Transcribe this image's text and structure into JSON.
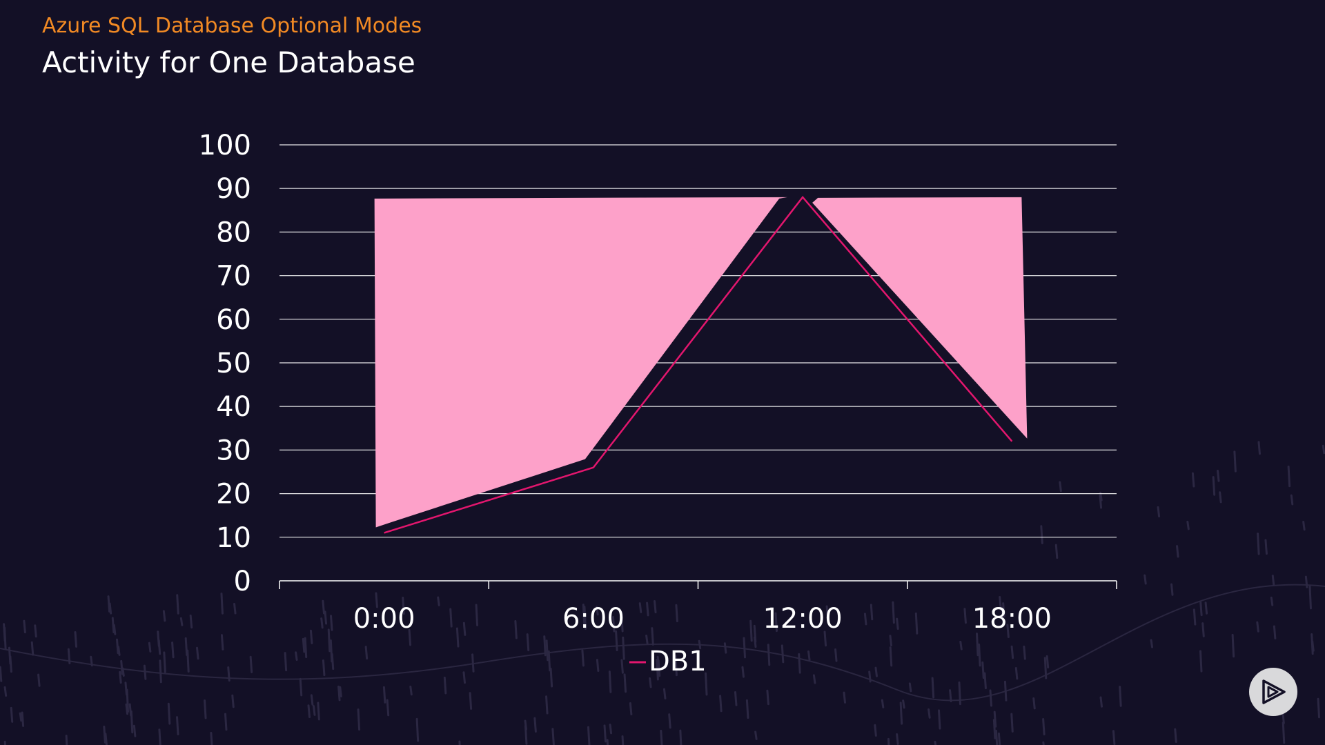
{
  "header": {
    "subtitle": "Azure SQL Database Optional Modes",
    "title": "Activity for One Database"
  },
  "colors": {
    "background": "#131026",
    "subtitle": "#f28a24",
    "area_fill": "#fda1c9",
    "line": "#e3166e",
    "grid": "#ffffff",
    "text": "#ffffff"
  },
  "chart_data": {
    "type": "line",
    "title": "",
    "xlabel": "",
    "ylabel": "",
    "categories": [
      "0:00",
      "6:00",
      "12:00",
      "18:00"
    ],
    "ylim": [
      0,
      100
    ],
    "yticks": [
      0,
      10,
      20,
      30,
      40,
      50,
      60,
      70,
      80,
      90,
      100
    ],
    "grid": true,
    "legend_position": "bottom-center",
    "series": [
      {
        "name": "DB1",
        "values": [
          11,
          26,
          88,
          32
        ]
      }
    ],
    "annotation_area": {
      "description_color": "pink",
      "values": [
        88,
        88,
        88,
        88
      ]
    }
  },
  "logo": {
    "icon": "pluralsight-play-icon"
  }
}
